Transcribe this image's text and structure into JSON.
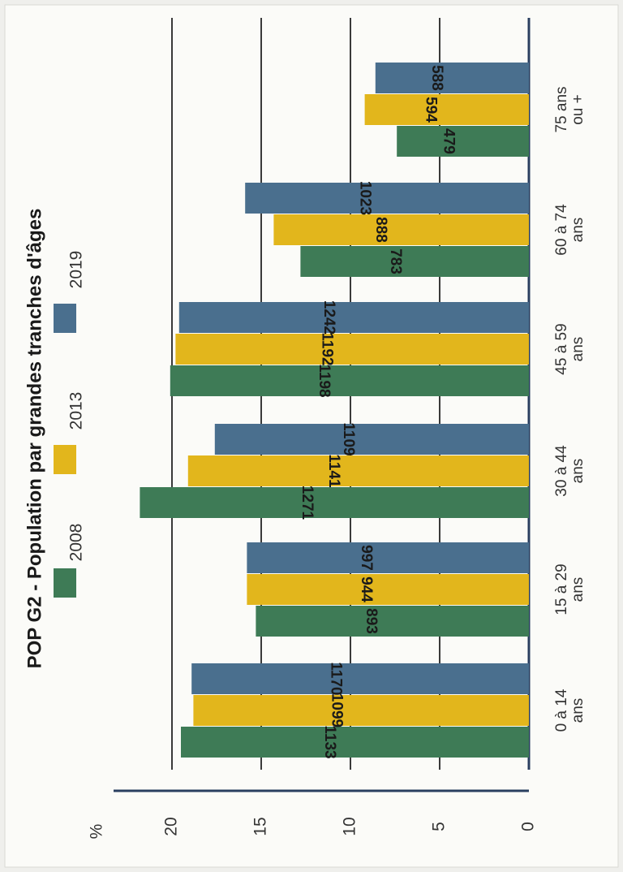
{
  "chart_data": {
    "type": "bar",
    "orientation": "rotated-90-counterclockwise",
    "title": "POP G2 - Population par grandes tranches d'âges",
    "ylabel": "%",
    "ylim": [
      0,
      22
    ],
    "yticks": [
      "0",
      "5",
      "10",
      "15",
      "20"
    ],
    "grid": true,
    "legend_position": "top",
    "categories": [
      [
        "0 à 14",
        "ans"
      ],
      [
        "15 à 29",
        "ans"
      ],
      [
        "30 à 44",
        "ans"
      ],
      [
        "45 à 59",
        "ans"
      ],
      [
        "60 à 74",
        "ans"
      ],
      [
        "75 ans",
        "ou +"
      ]
    ],
    "series": [
      {
        "name": "2008",
        "color": "#3e7b56",
        "values": [
          19.5,
          15.3,
          21.8,
          20.1,
          12.8,
          7.4
        ],
        "labels": [
          "1133",
          "893",
          "1271",
          "1198",
          "783",
          "479"
        ]
      },
      {
        "name": "2013",
        "color": "#e2b61c",
        "values": [
          18.8,
          15.8,
          19.1,
          19.8,
          14.3,
          9.2
        ],
        "labels": [
          "1099",
          "944",
          "1141",
          "1192",
          "888",
          "594"
        ]
      },
      {
        "name": "2019",
        "color": "#4a6f8e",
        "values": [
          18.9,
          15.8,
          17.6,
          19.6,
          15.9,
          8.6
        ],
        "labels": [
          "1170",
          "997",
          "1109",
          "1242",
          "1023",
          "588"
        ]
      }
    ]
  }
}
